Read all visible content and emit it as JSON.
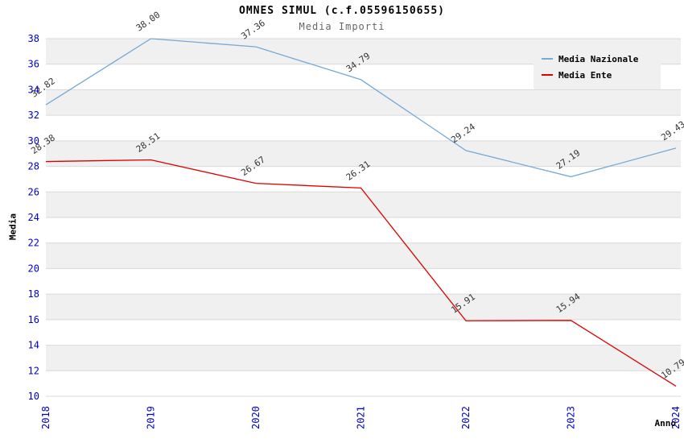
{
  "chart_data": {
    "type": "line",
    "title": "OMNES SIMUL (c.f.05596150655)",
    "subtitle": "Media Importi",
    "xlabel": "Anno",
    "ylabel": "Media",
    "x": [
      2018,
      2019,
      2020,
      2021,
      2022,
      2023,
      2024
    ],
    "series": [
      {
        "name": "Media Nazionale",
        "color": "#74a9d8",
        "values": [
          32.82,
          38.0,
          37.36,
          34.79,
          29.24,
          27.19,
          29.43
        ]
      },
      {
        "name": "Media Ente",
        "color": "#dd0000",
        "values": [
          28.38,
          28.51,
          26.67,
          26.31,
          15.91,
          15.94,
          10.79
        ]
      }
    ],
    "ylim": [
      10,
      38
    ],
    "ytick_step": 2,
    "yticks": [
      10,
      12,
      14,
      16,
      18,
      20,
      22,
      24,
      26,
      28,
      30,
      32,
      34,
      36,
      38
    ],
    "grid": true,
    "legend_position": "top-right",
    "colors": {
      "axis_text": "#0000cc",
      "data_label": "#333333",
      "band": "#f0f0f0",
      "grid": "#d9d9d9",
      "legend_bg": "#f0f0f0",
      "title": "#000000",
      "subtitle": "#666666"
    }
  }
}
